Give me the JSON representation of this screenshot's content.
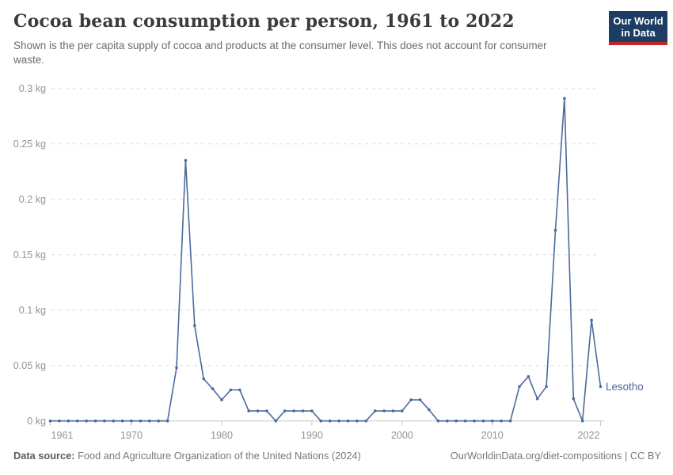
{
  "header": {
    "title": "Cocoa bean consumption per person, 1961 to 2022",
    "subtitle": "Shown is the per capita supply of cocoa and products at the consumer level. This does not account for consumer waste.",
    "logo": {
      "line1": "Our World",
      "line2": "in Data"
    }
  },
  "footer": {
    "source_label": "Data source:",
    "source_text": " Food and Agriculture Organization of the United Nations (2024)",
    "credit": "OurWorldinData.org/diet-compositions | CC BY"
  },
  "colors": {
    "line": "#4c6a9c",
    "grid": "#dedede",
    "axis": "#c6c6c6",
    "tick_label": "#949494",
    "logo_bg": "#1d3d63",
    "logo_underline": "#c0272d"
  },
  "chart_data": {
    "type": "line",
    "title": "Cocoa bean consumption per person, 1961 to 2022",
    "xlabel": "",
    "ylabel": "",
    "unit": "kg",
    "xlim": [
      1961,
      2022
    ],
    "ylim": [
      0,
      0.3
    ],
    "grid": true,
    "legend_position": "end-of-line-label",
    "x_ticks": [
      {
        "value": 1961,
        "label": "1961",
        "anchor": "start"
      },
      {
        "value": 1970,
        "label": "1970",
        "anchor": "middle"
      },
      {
        "value": 1980,
        "label": "1980",
        "anchor": "middle"
      },
      {
        "value": 1990,
        "label": "1990",
        "anchor": "middle"
      },
      {
        "value": 2000,
        "label": "2000",
        "anchor": "middle"
      },
      {
        "value": 2010,
        "label": "2010",
        "anchor": "middle"
      },
      {
        "value": 2022,
        "label": "2022",
        "anchor": "end"
      }
    ],
    "y_ticks": [
      {
        "value": 0,
        "label": "0 kg"
      },
      {
        "value": 0.05,
        "label": "0.05 kg"
      },
      {
        "value": 0.1,
        "label": "0.1 kg"
      },
      {
        "value": 0.15,
        "label": "0.15 kg"
      },
      {
        "value": 0.2,
        "label": "0.2 kg"
      },
      {
        "value": 0.25,
        "label": "0.25 kg"
      },
      {
        "value": 0.3,
        "label": "0.3 kg"
      }
    ],
    "series": [
      {
        "name": "Lesotho",
        "color": "#4c6a9c",
        "x": [
          1961,
          1962,
          1963,
          1964,
          1965,
          1966,
          1967,
          1968,
          1969,
          1970,
          1971,
          1972,
          1973,
          1974,
          1975,
          1976,
          1977,
          1978,
          1979,
          1980,
          1981,
          1982,
          1983,
          1984,
          1985,
          1986,
          1987,
          1988,
          1989,
          1990,
          1991,
          1992,
          1993,
          1994,
          1995,
          1996,
          1997,
          1998,
          1999,
          2000,
          2001,
          2002,
          2003,
          2004,
          2005,
          2006,
          2007,
          2008,
          2009,
          2010,
          2011,
          2012,
          2013,
          2014,
          2015,
          2016,
          2017,
          2018,
          2019,
          2020,
          2021,
          2022
        ],
        "values": [
          0,
          0,
          0,
          0,
          0,
          0,
          0,
          0,
          0,
          0,
          0,
          0,
          0,
          0,
          0.048,
          0.235,
          0.086,
          0.038,
          0.029,
          0.019,
          0.028,
          0.028,
          0.009,
          0.009,
          0.009,
          0,
          0.009,
          0.009,
          0.009,
          0.009,
          0,
          0,
          0,
          0,
          0,
          0,
          0.009,
          0.009,
          0.009,
          0.009,
          0.019,
          0.019,
          0.01,
          0,
          0,
          0,
          0,
          0,
          0,
          0,
          0,
          0,
          0.031,
          0.04,
          0.02,
          0.031,
          0.172,
          0.291,
          0.02,
          0,
          0.091,
          0.031
        ]
      }
    ]
  }
}
